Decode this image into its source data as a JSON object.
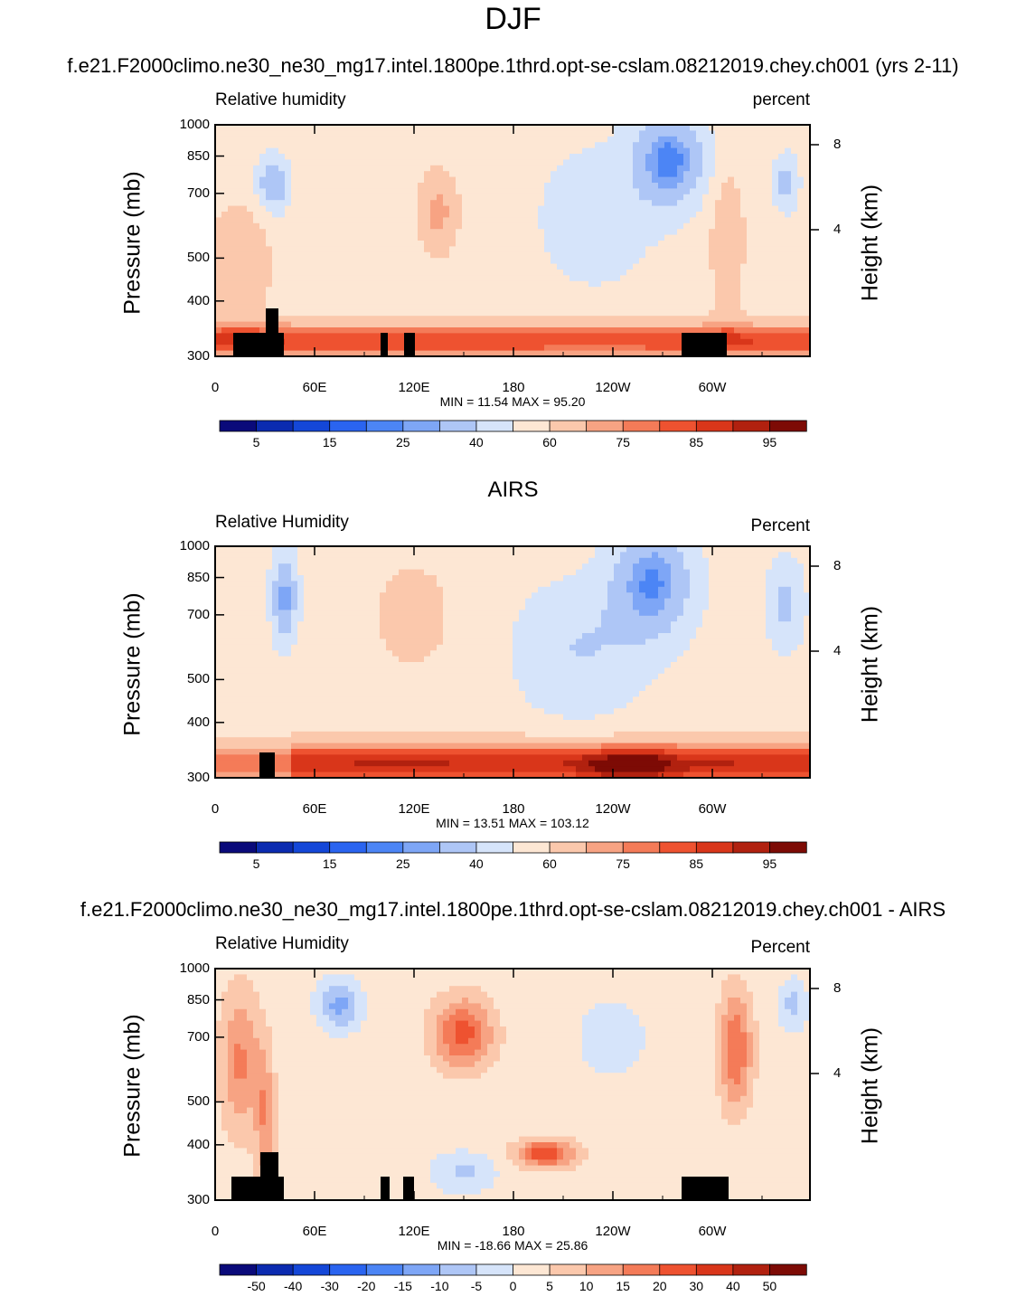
{
  "title": "DJF",
  "panels": [
    {
      "id": "model",
      "header": "f.e21.F2000climo.ne30_ne30_mg17.intel.1800pe.1thrd.opt-se-cslam.08212019.chey.ch001 (yrs 2-11)",
      "left_label": "Relative humidity",
      "right_label": "percent",
      "minmax": "MIN =  11.54  MAX =  95.20",
      "ylabel": "Pressure (mb)",
      "y2label": "Height (km)"
    },
    {
      "id": "obs",
      "header": "AIRS",
      "left_label": "Relative Humidity",
      "right_label": "Percent",
      "minmax": "MIN =  13.51  MAX = 103.12",
      "ylabel": "Pressure (mb)",
      "y2label": "Height (km)"
    },
    {
      "id": "diff",
      "header": "f.e21.F2000climo.ne30_ne30_mg17.intel.1800pe.1thrd.opt-se-cslam.08212019.chey.ch001 - AIRS",
      "left_label": "Relative Humidity",
      "right_label": "Percent",
      "minmax": "MIN = -18.66  MAX =  25.86",
      "ylabel": "Pressure (mb)",
      "y2label": "Height (km)"
    }
  ],
  "chart_data": [
    {
      "type": "heatmap",
      "title": "Relative humidity",
      "units": "percent",
      "xlabel": "",
      "ylabel": "Pressure (mb)",
      "y2label": "Height (km)",
      "x_ticks": [
        "0",
        "60E",
        "120E",
        "180",
        "120W",
        "60W"
      ],
      "y_ticks": [
        "300",
        "400",
        "500",
        "700",
        "850",
        "1000"
      ],
      "y2_ticks": [
        "8",
        "4"
      ],
      "xlim": [
        0,
        360
      ],
      "ylim": [
        1000,
        300
      ],
      "min": 11.54,
      "max": 95.2,
      "colorbar_levels": [
        "5",
        "15",
        "25",
        "40",
        "60",
        "75",
        "85",
        "95"
      ]
    },
    {
      "type": "heatmap",
      "title": "Relative Humidity",
      "units": "Percent",
      "ylabel": "Pressure (mb)",
      "y2label": "Height (km)",
      "x_ticks": [
        "0",
        "60E",
        "120E",
        "180",
        "120W",
        "60W"
      ],
      "y_ticks": [
        "300",
        "400",
        "500",
        "700",
        "850",
        "1000"
      ],
      "y2_ticks": [
        "8",
        "4"
      ],
      "xlim": [
        0,
        360
      ],
      "ylim": [
        1000,
        300
      ],
      "min": 13.51,
      "max": 103.12,
      "colorbar_levels": [
        "5",
        "15",
        "25",
        "40",
        "60",
        "75",
        "85",
        "95"
      ]
    },
    {
      "type": "heatmap",
      "title": "Relative Humidity",
      "units": "Percent",
      "ylabel": "Pressure (mb)",
      "y2label": "Height (km)",
      "x_ticks": [
        "0",
        "60E",
        "120E",
        "180",
        "120W",
        "60W"
      ],
      "y_ticks": [
        "300",
        "400",
        "500",
        "700",
        "850",
        "1000"
      ],
      "y2_ticks": [
        "8",
        "4"
      ],
      "xlim": [
        0,
        360
      ],
      "ylim": [
        1000,
        300
      ],
      "min": -18.66,
      "max": 25.86,
      "colorbar_levels": [
        "-50",
        "-40",
        "-30",
        "-20",
        "-15",
        "-10",
        "-5",
        "0",
        "5",
        "10",
        "15",
        "20",
        "30",
        "40",
        "50"
      ]
    }
  ],
  "colors": {
    "abs_palette": [
      "#0a0a7a",
      "#0b2bb0",
      "#1447d8",
      "#2a64f0",
      "#4c85f5",
      "#7ea6f6",
      "#aec6f6",
      "#d6e4fa",
      "#fde7d4",
      "#fbc8ac",
      "#f7a383",
      "#f47b58",
      "#ee5230",
      "#d9361a",
      "#b1210f",
      "#7d0b05"
    ],
    "diff_palette": [
      "#0a0a7a",
      "#0b2bb0",
      "#1447d8",
      "#2a64f0",
      "#4c85f5",
      "#7ea6f6",
      "#aec6f6",
      "#d6e4fa",
      "#fde7d4",
      "#fbc8ac",
      "#f7a383",
      "#f47b58",
      "#ee5230",
      "#d9361a",
      "#b1210f",
      "#7d0b05"
    ],
    "topography": "#000000"
  }
}
